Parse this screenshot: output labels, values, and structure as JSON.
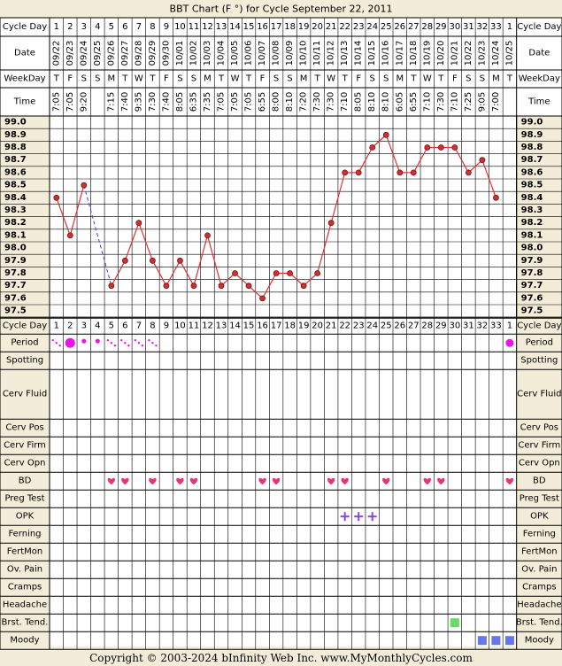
{
  "title": "BBT Chart (F °) for Cycle September 22, 2011",
  "copyright": "Copyright © 2003-2024 bInfinity Web Inc.     www.MyMonthlyCycles.com",
  "row_labels": {
    "cycle_day": "Cycle Day",
    "date": "Date",
    "weekday": "WeekDay",
    "time": "Time"
  },
  "colors": {
    "background": "#f3ecd8",
    "grid_fill": "#ffffff",
    "line": "#e03030",
    "dot": "#d03030",
    "coverline": "#3344dd",
    "period": "#ee11ee",
    "heart": "#e8337a",
    "opk": "#8a44dd",
    "brst_tend": "#66dd66",
    "moody": "#6677ee"
  },
  "chart_data": {
    "type": "line",
    "title": "BBT Chart (F °) for Cycle September 22, 2011",
    "xlabel": "Cycle Day",
    "ylabel": "",
    "ylim": [
      97.5,
      99.0
    ],
    "y_ticks": [
      "99.0",
      "98.9",
      "98.8",
      "98.7",
      "98.6",
      "98.5",
      "98.4",
      "98.3",
      "98.2",
      "98.1",
      "98.0",
      "97.9",
      "97.8",
      "97.7",
      "97.6",
      "97.5"
    ],
    "cycle_days": [
      "1",
      "2",
      "3",
      "4",
      "5",
      "6",
      "7",
      "8",
      "9",
      "10",
      "11",
      "12",
      "13",
      "14",
      "15",
      "16",
      "17",
      "18",
      "19",
      "20",
      "21",
      "22",
      "23",
      "24",
      "25",
      "26",
      "27",
      "28",
      "29",
      "30",
      "31",
      "32",
      "33",
      "1"
    ],
    "dates": [
      "09/22",
      "09/23",
      "09/24",
      "09/25",
      "09/26",
      "09/27",
      "09/28",
      "09/29",
      "09/30",
      "10/01",
      "10/02",
      "10/03",
      "10/04",
      "10/05",
      "10/06",
      "10/07",
      "10/08",
      "10/09",
      "10/10",
      "10/11",
      "10/12",
      "10/13",
      "10/14",
      "10/15",
      "10/16",
      "10/17",
      "10/18",
      "10/19",
      "10/20",
      "10/21",
      "10/22",
      "10/23",
      "10/24",
      "10/25"
    ],
    "weekdays": [
      "T",
      "F",
      "S",
      "S",
      "M",
      "T",
      "W",
      "T",
      "F",
      "S",
      "S",
      "M",
      "T",
      "W",
      "T",
      "F",
      "S",
      "S",
      "M",
      "T",
      "W",
      "T",
      "F",
      "S",
      "S",
      "M",
      "T",
      "W",
      "T",
      "F",
      "S",
      "S",
      "M",
      "T"
    ],
    "times": [
      "7:05",
      "7:05",
      "9:20",
      "",
      "7:15",
      "7:40",
      "9:35",
      "7:30",
      "7:40",
      "8:05",
      "6:35",
      "7:35",
      "7:05",
      "7:05",
      "7:05",
      "6:55",
      "8:00",
      "8:10",
      "7:20",
      "7:30",
      "7:30",
      "7:10",
      "8:05",
      "8:10",
      "8:10",
      "6:05",
      "6:55",
      "7:10",
      "7:30",
      "7:10",
      "7:25",
      "9:05",
      "7:00",
      ""
    ],
    "series": [
      {
        "values": [
          98.4,
          98.1,
          98.5,
          null,
          97.7,
          97.9,
          98.2,
          97.9,
          97.7,
          97.9,
          97.7,
          98.1,
          97.7,
          97.8,
          97.7,
          97.6,
          97.8,
          97.8,
          97.7,
          97.8,
          98.2,
          98.6,
          98.6,
          98.8,
          98.9,
          98.6,
          98.6,
          98.8,
          98.8,
          98.8,
          98.6,
          98.7,
          98.4,
          null
        ]
      }
    ],
    "gap_dashed_segment": {
      "from_day_index": 2,
      "to_day_index": 4
    },
    "grid": true
  },
  "tracking": {
    "header_label": "Cycle Day",
    "rows": [
      {
        "label": "Period",
        "marks": [
          {
            "i": 0,
            "k": "spot"
          },
          {
            "i": 1,
            "k": "big"
          },
          {
            "i": 2,
            "k": "small"
          },
          {
            "i": 3,
            "k": "small"
          },
          {
            "i": 4,
            "k": "spot"
          },
          {
            "i": 5,
            "k": "spot"
          },
          {
            "i": 6,
            "k": "spot"
          },
          {
            "i": 7,
            "k": "spot"
          },
          {
            "i": 33,
            "k": "med"
          }
        ]
      },
      {
        "label": "Spotting",
        "marks": []
      },
      {
        "label": "Cerv Fluid",
        "marks": []
      },
      {
        "label": "Cerv Pos",
        "marks": []
      },
      {
        "label": "Cerv Firm",
        "marks": []
      },
      {
        "label": "Cerv Opn",
        "marks": []
      },
      {
        "label": "BD",
        "marks": [
          {
            "i": 4,
            "k": "heart"
          },
          {
            "i": 5,
            "k": "heart"
          },
          {
            "i": 7,
            "k": "heart"
          },
          {
            "i": 9,
            "k": "heart"
          },
          {
            "i": 10,
            "k": "heart"
          },
          {
            "i": 15,
            "k": "heart"
          },
          {
            "i": 16,
            "k": "heart"
          },
          {
            "i": 20,
            "k": "heart"
          },
          {
            "i": 21,
            "k": "heart"
          },
          {
            "i": 24,
            "k": "heart"
          },
          {
            "i": 27,
            "k": "heart"
          },
          {
            "i": 28,
            "k": "heart"
          },
          {
            "i": 33,
            "k": "heart"
          }
        ]
      },
      {
        "label": "Preg Test",
        "marks": []
      },
      {
        "label": "OPK",
        "marks": [
          {
            "i": 21,
            "k": "plus"
          },
          {
            "i": 22,
            "k": "plus"
          },
          {
            "i": 23,
            "k": "plus"
          }
        ]
      },
      {
        "label": "Ferning",
        "marks": []
      },
      {
        "label": "FertMon",
        "marks": []
      },
      {
        "label": "Ov. Pain",
        "marks": []
      },
      {
        "label": "Cramps",
        "marks": []
      },
      {
        "label": "Headache",
        "marks": []
      },
      {
        "label": "Brst. Tend.",
        "marks": [
          {
            "i": 29,
            "k": "green"
          }
        ]
      },
      {
        "label": "Moody",
        "marks": [
          {
            "i": 31,
            "k": "blue"
          },
          {
            "i": 32,
            "k": "blue"
          },
          {
            "i": 33,
            "k": "blue"
          }
        ]
      }
    ]
  }
}
